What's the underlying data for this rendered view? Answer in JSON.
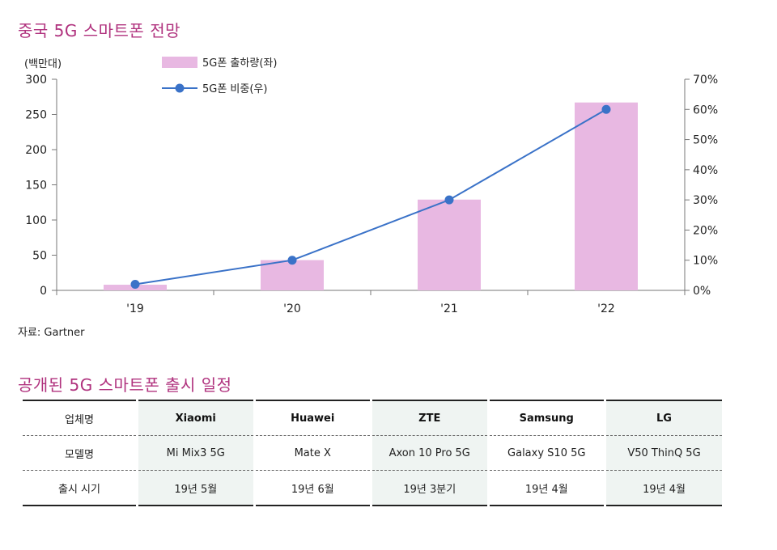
{
  "chart_title": "중국 5G 스마트폰 전망",
  "left_unit_label": "(백만대)",
  "source": "자료: Gartner",
  "chart_data": {
    "type": "bar",
    "categories": [
      "'19",
      "'20",
      "'21",
      "'22"
    ],
    "series": [
      {
        "name": "5G폰 출하량(좌)",
        "type": "bar",
        "axis": "left",
        "values": [
          8,
          43,
          129,
          267
        ],
        "color": "#e8b8e2"
      },
      {
        "name": "5G폰 비중(우)",
        "type": "line",
        "axis": "right",
        "values": [
          2,
          10,
          30,
          60
        ],
        "color": "#3a72c8"
      }
    ],
    "y_left": {
      "min": 0,
      "max": 300,
      "ticks": [
        0,
        50,
        100,
        150,
        200,
        250,
        300
      ]
    },
    "y_right": {
      "min": 0,
      "max": 70,
      "ticks": [
        "0%",
        "10%",
        "20%",
        "30%",
        "40%",
        "50%",
        "60%",
        "70%"
      ]
    },
    "legend_position": "top-left",
    "grid": false
  },
  "table_title": "공개된 5G 스마트폰 출시 일정",
  "table": {
    "rows": [
      {
        "header": "업체명",
        "cells": [
          "Xiaomi",
          "Huawei",
          "ZTE",
          "Samsung",
          "LG"
        ]
      },
      {
        "header": "모델명",
        "cells": [
          "Mi Mix3 5G",
          "Mate X",
          "Axon 10 Pro 5G",
          "Galaxy S10 5G",
          "V50 ThinQ 5G"
        ]
      },
      {
        "header": "출시 시기",
        "cells": [
          "19년 5월",
          "19년 6월",
          "19년 3분기",
          "19년 4월",
          "19년 4월"
        ]
      }
    ]
  }
}
